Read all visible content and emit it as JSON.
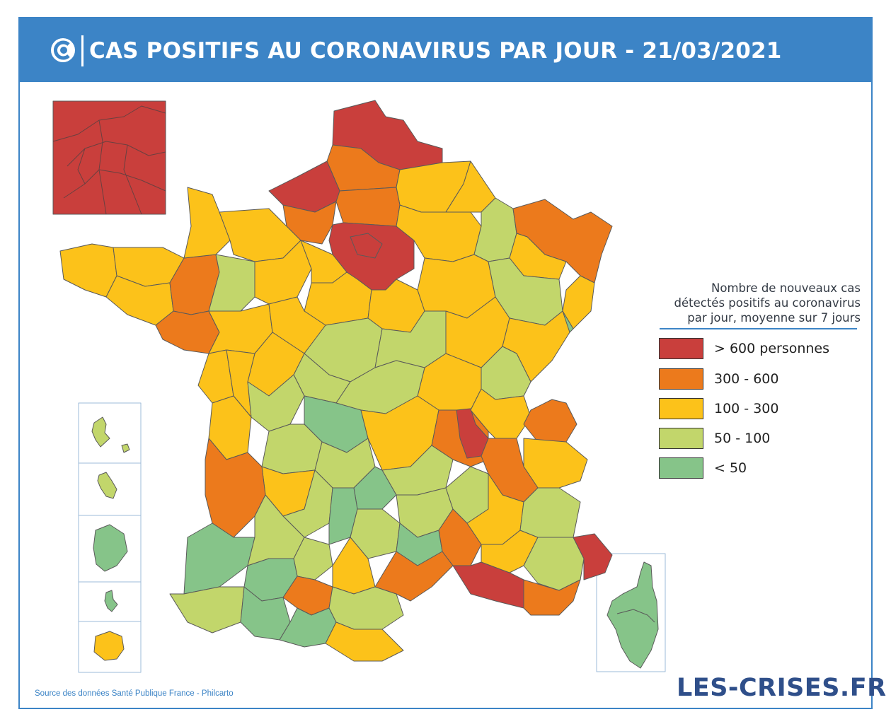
{
  "header": {
    "title": "CAS POSITIFS AU CORONAVIRUS PAR JOUR - 21/03/2021",
    "logo_icon": "les-crises-logo-icon"
  },
  "legend": {
    "title_lines": [
      "Nombre de nouveaux cas",
      "détectés positifs au coronavirus",
      "par jour, moyenne sur 7 jours"
    ],
    "items": [
      {
        "label": "> 600 personnes",
        "color": "#c93f3c"
      },
      {
        "label": "300 - 600",
        "color": "#ec7a1c"
      },
      {
        "label": "100 - 300",
        "color": "#fcc21a"
      },
      {
        "label": "50 - 100",
        "color": "#c2d66b"
      },
      {
        "label": "< 50",
        "color": "#86c489"
      }
    ]
  },
  "colors": {
    "accent": "#3c84c6",
    "border": "#5a5a5a",
    "brand_text": "#2f4f8a"
  },
  "footer": {
    "source": "Source des données Santé Publique France - Philcarto",
    "brand": "LES-CRISES.FR"
  }
}
